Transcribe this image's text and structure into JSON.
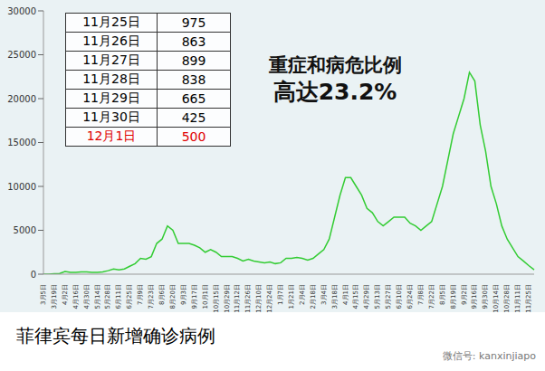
{
  "chart_data": {
    "type": "line",
    "title": "菲律宾每日新增确诊病例",
    "annotations": [
      "重症和病危比例",
      "高达23.2%"
    ],
    "source": "微信号: kanxinjiapo",
    "table": {
      "rows": [
        [
          "11月25日",
          975
        ],
        [
          "11月26日",
          863
        ],
        [
          "11月27日",
          899
        ],
        [
          "11月28日",
          838
        ],
        [
          "11月29日",
          665
        ],
        [
          "11月30日",
          425
        ],
        [
          "12月1日",
          500
        ]
      ]
    },
    "categories": [
      "3月5日",
      null,
      "3月19日",
      null,
      "4月2日",
      null,
      "4月16日",
      null,
      "4月30日",
      null,
      "5月14日",
      null,
      "5月28日",
      null,
      "6月11日",
      null,
      "6月25日",
      null,
      "7月9日",
      null,
      "7月23日",
      null,
      "8月6日",
      null,
      "8月20日",
      null,
      "9月3日",
      null,
      "9月17日",
      null,
      "10月1日",
      null,
      "10月15日",
      null,
      "10月29日",
      null,
      "11月12日",
      null,
      "11月26日",
      null,
      "12月10日",
      null,
      "12月24日",
      null,
      "1月7日",
      null,
      "1月21日",
      null,
      "2月4日",
      null,
      "2月18日",
      null,
      "3月4日",
      null,
      "3月18日",
      null,
      "4月1日",
      null,
      "4月15日",
      null,
      "4月29日",
      null,
      "5月13日",
      null,
      "5月27日",
      null,
      "6月10日",
      null,
      "6月24日",
      null,
      "7月8日",
      null,
      "7月22日",
      null,
      "8月5日",
      null,
      "8月19日",
      null,
      "9月2日",
      null,
      "9月16日",
      null,
      "9月30日",
      null,
      "10月14日",
      null,
      "10月28日",
      null,
      "11月11日",
      null,
      "11月25日",
      null
    ],
    "values": [
      0,
      10,
      40,
      80,
      300,
      200,
      200,
      250,
      250,
      200,
      200,
      250,
      400,
      600,
      500,
      600,
      900,
      1200,
      1800,
      1700,
      2000,
      3500,
      4000,
      5500,
      5000,
      3500,
      3500,
      3500,
      3300,
      3000,
      2500,
      2800,
      2500,
      2000,
      2000,
      2000,
      1800,
      1500,
      1700,
      1500,
      1400,
      1300,
      1400,
      1200,
      1300,
      1800,
      1800,
      1900,
      1800,
      1600,
      1800,
      2300,
      2800,
      4000,
      6500,
      9000,
      11000,
      11000,
      10000,
      9000,
      7500,
      7000,
      6000,
      5500,
      6000,
      6500,
      6500,
      6500,
      5800,
      5500,
      5000,
      5500,
      6000,
      8000,
      10000,
      13000,
      16000,
      18000,
      20000,
      23000,
      22000,
      17000,
      14000,
      10000,
      8000,
      5500,
      4000,
      3000,
      2000,
      1500,
      975,
      500
    ],
    "color": "#33cc33",
    "ylim": [
      0,
      30000
    ],
    "yticks": [
      0,
      5000,
      10000,
      15000,
      20000,
      25000,
      30000
    ],
    "grid": false
  }
}
